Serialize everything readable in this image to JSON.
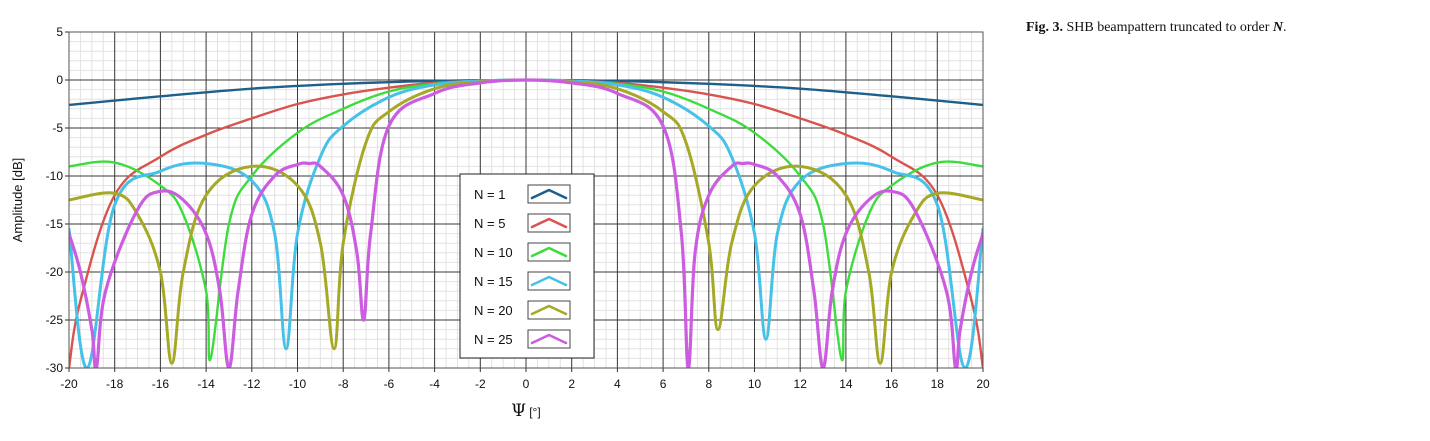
{
  "caption": {
    "fig_label": "Fig. 3.",
    "text": "SHB beampattern truncated to order",
    "order_symbol": "N",
    "end": "."
  },
  "chart_data": {
    "type": "line",
    "title": "",
    "xlabel_symbol": "Ψ",
    "xlabel_unit": "[°]",
    "ylabel": "Amplitude [dB]",
    "xlim": [
      -20,
      20
    ],
    "ylim": [
      -30,
      5
    ],
    "xticks": [
      -20,
      -18,
      -16,
      -14,
      -12,
      -10,
      -8,
      -6,
      -4,
      -2,
      0,
      2,
      4,
      6,
      8,
      10,
      12,
      14,
      16,
      18,
      20
    ],
    "yticks": [
      5,
      0,
      -5,
      -10,
      -15,
      -20,
      -25,
      -30
    ],
    "grid": "major and minor",
    "legend_position": "center",
    "series": [
      {
        "name": "N = 1",
        "order": 1,
        "color": "#1f5f8b",
        "x": [
          -20,
          -16,
          -12,
          -8,
          -4,
          0,
          4,
          8,
          12,
          16,
          20
        ],
        "y": [
          -2.6,
          -1.7,
          -0.9,
          -0.4,
          -0.1,
          0,
          -0.1,
          -0.4,
          -0.9,
          -1.7,
          -2.6
        ]
      },
      {
        "name": "N = 5",
        "order": 5,
        "color": "#d9534f",
        "x": [
          -20,
          -19.5,
          -18,
          -16,
          -14,
          -12,
          -10,
          -8,
          -6,
          -4,
          -2,
          0,
          2,
          4,
          6,
          8,
          10,
          12,
          14,
          16,
          18,
          19.5,
          20
        ],
        "y": [
          -30,
          -23,
          -12,
          -8,
          -5.7,
          -4,
          -2.5,
          -1.5,
          -0.8,
          -0.3,
          -0.1,
          0,
          -0.1,
          -0.3,
          -0.8,
          -1.5,
          -2.5,
          -4,
          -5.7,
          -8,
          -12,
          -23,
          -30
        ]
      },
      {
        "name": "N = 10",
        "order": 10,
        "color": "#3ddc3d",
        "x": [
          -20,
          -18,
          -16,
          -15,
          -14,
          -13.8,
          -13,
          -12,
          -10,
          -8,
          -6,
          -4,
          -2,
          0,
          2,
          4,
          6,
          8,
          10,
          12,
          13,
          13.8,
          14,
          15,
          16,
          18,
          20
        ],
        "y": [
          -9,
          -8.6,
          -11,
          -14,
          -22,
          -29,
          -15,
          -10,
          -5.5,
          -3,
          -1.2,
          -0.4,
          -0.1,
          0,
          -0.1,
          -0.4,
          -1.2,
          -3,
          -5.5,
          -10,
          -15,
          -29,
          -22,
          -14,
          -11,
          -8.6,
          -9
        ]
      },
      {
        "name": "N = 15",
        "order": 15,
        "color": "#46c1e8",
        "x": [
          -20,
          -19.2,
          -18,
          -16,
          -14,
          -12,
          -11,
          -10.5,
          -10,
          -9,
          -8,
          -6,
          -4,
          -2,
          0,
          2,
          4,
          6,
          8,
          9,
          10,
          10.5,
          11,
          12,
          14,
          16,
          18,
          19.2,
          20
        ],
        "y": [
          -15.5,
          -30,
          -13,
          -9.5,
          -8.7,
          -10.5,
          -16,
          -28,
          -16,
          -8,
          -4.8,
          -1.8,
          -0.5,
          -0.1,
          0,
          -0.1,
          -0.5,
          -1.8,
          -4.8,
          -8,
          -16,
          -27,
          -16,
          -10.5,
          -8.7,
          -9.5,
          -13,
          -30,
          -15.5
        ]
      },
      {
        "name": "N = 20",
        "order": 20,
        "color": "#a5a925",
        "x": [
          -20,
          -18,
          -17,
          -16,
          -15.5,
          -15,
          -14,
          -12,
          -10,
          -9,
          -8.4,
          -8,
          -7,
          -6,
          -4,
          -2,
          0,
          2,
          4,
          6,
          7,
          8,
          8.4,
          9,
          10,
          12,
          14,
          15,
          15.5,
          16,
          17,
          18,
          20
        ],
        "y": [
          -12.5,
          -11.8,
          -14,
          -20,
          -29.5,
          -20,
          -12,
          -9,
          -11,
          -17,
          -28,
          -17,
          -6.5,
          -3.3,
          -0.9,
          -0.2,
          0,
          -0.2,
          -0.9,
          -3.3,
          -6.5,
          -17,
          -26,
          -17,
          -11,
          -9,
          -12,
          -20,
          -29.5,
          -20,
          -14,
          -11.8,
          -12.5
        ]
      },
      {
        "name": "N = 25",
        "order": 25,
        "color": "#cc5ce0",
        "x": [
          -20,
          -19.5,
          -19,
          -18.8,
          -18.4,
          -17,
          -16,
          -15,
          -14,
          -13.4,
          -13,
          -12.6,
          -12,
          -11,
          -10,
          -9.5,
          -9,
          -8,
          -7.4,
          -7.1,
          -6.8,
          -6,
          -4,
          -2,
          0,
          2,
          4,
          6,
          6.8,
          7.1,
          7.4,
          8,
          9,
          9.5,
          10,
          11,
          12,
          12.6,
          13,
          13.4,
          14,
          15,
          16,
          17,
          18.4,
          18.8,
          19,
          19.5,
          20
        ],
        "y": [
          -16,
          -20,
          -26,
          -30,
          -22,
          -13.5,
          -11.6,
          -12.5,
          -16,
          -22,
          -30,
          -22,
          -14,
          -10,
          -8.8,
          -8.7,
          -9,
          -12,
          -18,
          -25,
          -16,
          -4.8,
          -1.4,
          -0.3,
          0,
          -0.3,
          -1.4,
          -4.8,
          -16,
          -30,
          -18,
          -12,
          -9,
          -8.7,
          -8.8,
          -10,
          -14,
          -22,
          -30,
          -22,
          -16,
          -12.5,
          -11.6,
          -13.5,
          -22,
          -30,
          -26,
          -20,
          -16
        ]
      }
    ]
  }
}
